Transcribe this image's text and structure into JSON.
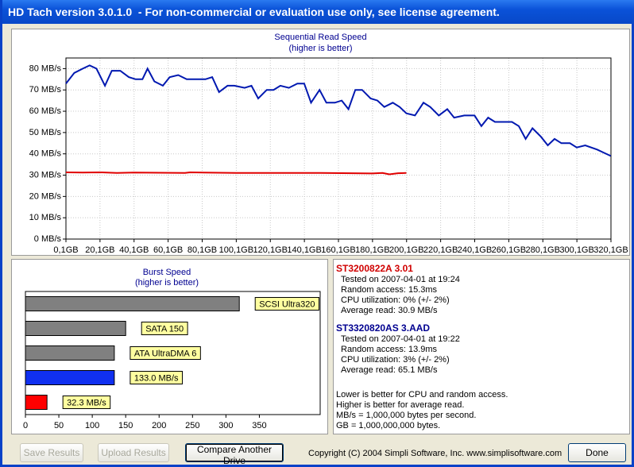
{
  "window": {
    "title": "HD Tach version 3.0.1.0  - For non-commercial or evaluation use only, see license agreement."
  },
  "chart_data": [
    {
      "type": "line",
      "title": "Sequential Read Speed",
      "subtitle": "(higher is better)",
      "grid": true,
      "xlim": [
        0.1,
        320.1
      ],
      "xticks": [
        {
          "value": 0.1,
          "label": "0,1GB"
        },
        {
          "value": 20.1,
          "label": "20,1GB"
        },
        {
          "value": 40.1,
          "label": "40,1GB"
        },
        {
          "value": 60.1,
          "label": "60,1GB"
        },
        {
          "value": 80.1,
          "label": "80,1GB"
        },
        {
          "value": 100.1,
          "label": "100,1GB"
        },
        {
          "value": 120.1,
          "label": "120,1GB"
        },
        {
          "value": 140.1,
          "label": "140,1GB"
        },
        {
          "value": 160.1,
          "label": "160,1GB"
        },
        {
          "value": 180.1,
          "label": "180,1GB"
        },
        {
          "value": 200.1,
          "label": "200,1GB"
        },
        {
          "value": 220.1,
          "label": "220,1GB"
        },
        {
          "value": 240.1,
          "label": "240,1GB"
        },
        {
          "value": 260.1,
          "label": "260,1GB"
        },
        {
          "value": 280.1,
          "label": "280,1GB"
        },
        {
          "value": 300.1,
          "label": "300,1GB"
        },
        {
          "value": 320.1,
          "label": "320,1GB"
        }
      ],
      "ylim": [
        0,
        85
      ],
      "yticks": [
        {
          "value": 0,
          "label": "0 MB/s"
        },
        {
          "value": 10,
          "label": "10 MB/s"
        },
        {
          "value": 20,
          "label": "20 MB/s"
        },
        {
          "value": 30,
          "label": "30 MB/s"
        },
        {
          "value": 40,
          "label": "40 MB/s"
        },
        {
          "value": 50,
          "label": "50 MB/s"
        },
        {
          "value": 60,
          "label": "60 MB/s"
        },
        {
          "value": 70,
          "label": "70 MB/s"
        },
        {
          "value": 80,
          "label": "80 MB/s"
        }
      ],
      "series": [
        {
          "color": "#0018b0",
          "x": [
            0.1,
            5,
            10,
            14,
            18,
            23,
            27,
            32,
            37,
            41,
            45,
            48,
            52,
            57,
            61,
            66,
            71,
            77,
            82,
            86,
            90,
            95,
            99,
            105,
            109,
            113,
            118,
            122,
            126,
            131,
            136,
            140,
            144,
            149,
            153,
            158,
            162,
            166,
            170,
            174,
            179,
            183,
            187,
            192,
            196,
            200,
            205,
            210,
            214,
            219,
            224,
            228,
            234,
            240,
            244,
            248,
            252,
            256,
            262,
            266,
            270,
            274,
            279,
            283,
            287,
            291,
            296,
            300,
            305,
            312,
            320
          ],
          "values": [
            73,
            78,
            80,
            81.5,
            80,
            72,
            79,
            79,
            76,
            75,
            75,
            80,
            74,
            72,
            76,
            77,
            75,
            75,
            75,
            76,
            69,
            72,
            72,
            71,
            72,
            66,
            70,
            70,
            72,
            71,
            73,
            73,
            64,
            70,
            64,
            64,
            65,
            61,
            70,
            70,
            66,
            65,
            62,
            64,
            62,
            59,
            58,
            64,
            62,
            58,
            61,
            57,
            58,
            58,
            53,
            57,
            55,
            55,
            55,
            53,
            47,
            52,
            48,
            44,
            47,
            45,
            45,
            43,
            44,
            42,
            39
          ]
        },
        {
          "color": "#e00000",
          "x": [
            0.1,
            10,
            20,
            30,
            40,
            70,
            73,
            100,
            150,
            180,
            186,
            190,
            195,
            200
          ],
          "values": [
            31.3,
            31.2,
            31.3,
            31.0,
            31.2,
            31.0,
            31.3,
            31.0,
            31.0,
            30.8,
            31.0,
            30.4,
            30.9,
            31.0
          ]
        }
      ]
    },
    {
      "type": "bar",
      "orientation": "horizontal",
      "title": "Burst Speed",
      "subtitle": "(higher is better)",
      "categories": [
        "SCSI Ultra320",
        "SATA 150",
        "ATA UltraDMA 6",
        null,
        null
      ],
      "values": [
        320,
        150,
        133,
        133.0,
        32.3
      ],
      "value_labels": [
        null,
        null,
        null,
        "133.0 MB/s",
        "32.3 MB/s"
      ],
      "colors": [
        "#808080",
        "#808080",
        "#808080",
        "#1030f0",
        "#ff0000"
      ],
      "xlim": [
        0,
        441
      ],
      "xticks": [
        0,
        50,
        100,
        150,
        200,
        250,
        300,
        350
      ]
    }
  ],
  "drives": [
    {
      "header": "ST3200822A 3.01",
      "color": "#d00000",
      "lines": [
        "Tested on 2007-04-01 at 19:24",
        "Random access: 15.3ms",
        "CPU utilization: 0% (+/- 2%)",
        "Average read: 30.9 MB/s"
      ]
    },
    {
      "header": "ST3320820AS 3.AAD",
      "color": "#000090",
      "lines": [
        "Tested on 2007-04-01 at 19:22",
        "Random access: 13.9ms",
        "CPU utilization: 3% (+/- 2%)",
        "Average read: 65.1 MB/s"
      ]
    }
  ],
  "notes": [
    "Lower is better for CPU and random access.",
    "Higher is better for average read.",
    "MB/s = 1,000,000 bytes per second.",
    "GB = 1,000,000,000 bytes."
  ],
  "buttons": {
    "save": "Save Results",
    "upload": "Upload Results",
    "compare": "Compare Another Drive",
    "done": "Done"
  },
  "footer": "Copyright (C) 2004 Simpli Software, Inc. www.simplisoftware.com"
}
